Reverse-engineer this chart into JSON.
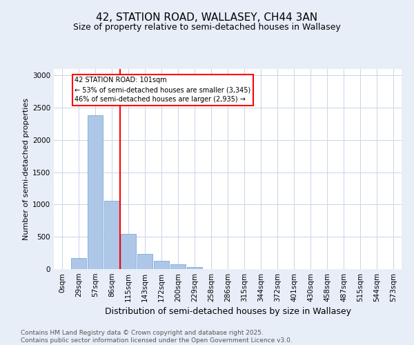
{
  "title_line1": "42, STATION ROAD, WALLASEY, CH44 3AN",
  "title_line2": "Size of property relative to semi-detached houses in Wallasey",
  "xlabel": "Distribution of semi-detached houses by size in Wallasey",
  "ylabel": "Number of semi-detached properties",
  "bar_labels": [
    "0sqm",
    "29sqm",
    "57sqm",
    "86sqm",
    "115sqm",
    "143sqm",
    "172sqm",
    "200sqm",
    "229sqm",
    "258sqm",
    "286sqm",
    "315sqm",
    "344sqm",
    "372sqm",
    "401sqm",
    "430sqm",
    "458sqm",
    "487sqm",
    "515sqm",
    "544sqm",
    "573sqm"
  ],
  "bar_values": [
    0,
    175,
    2380,
    1060,
    540,
    240,
    130,
    80,
    30,
    5,
    0,
    0,
    0,
    0,
    0,
    0,
    0,
    0,
    0,
    0,
    0
  ],
  "bar_color": "#aec6e8",
  "bar_edge_color": "#7aadd4",
  "red_line_x": 3.5,
  "annotation_text": "42 STATION ROAD: 101sqm\n← 53% of semi-detached houses are smaller (3,345)\n46% of semi-detached houses are larger (2,935) →",
  "annotation_box_color": "white",
  "annotation_box_edge_color": "red",
  "red_line_color": "red",
  "ylim": [
    0,
    3100
  ],
  "yticks": [
    0,
    500,
    1000,
    1500,
    2000,
    2500,
    3000
  ],
  "footer_text": "Contains HM Land Registry data © Crown copyright and database right 2025.\nContains public sector information licensed under the Open Government Licence v3.0.",
  "background_color": "#e8eef8",
  "plot_background_color": "white",
  "grid_color": "#c8d4e8",
  "title_fontsize": 11,
  "subtitle_fontsize": 9,
  "xlabel_fontsize": 9,
  "ylabel_fontsize": 8,
  "tick_fontsize": 7.5,
  "footer_fontsize": 6.5
}
